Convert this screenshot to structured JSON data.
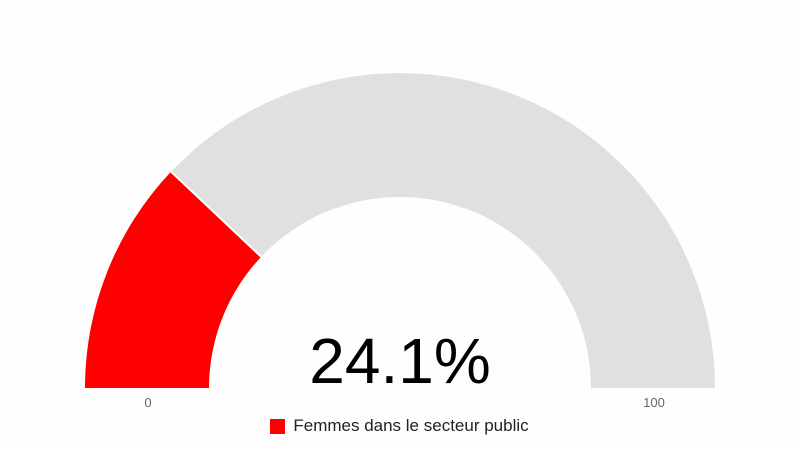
{
  "chart_data": {
    "type": "gauge",
    "value": 24.1,
    "value_label": "24.1%",
    "min": 0,
    "max": 100,
    "min_label": "0",
    "max_label": "100",
    "series": [
      {
        "name": "Femmes dans le secteur public",
        "value": 24.1
      }
    ],
    "legend_position": "bottom-center",
    "colors": {
      "fill": "#ff0000",
      "track": "#e0e0e0",
      "separator": "#ffffff"
    }
  }
}
